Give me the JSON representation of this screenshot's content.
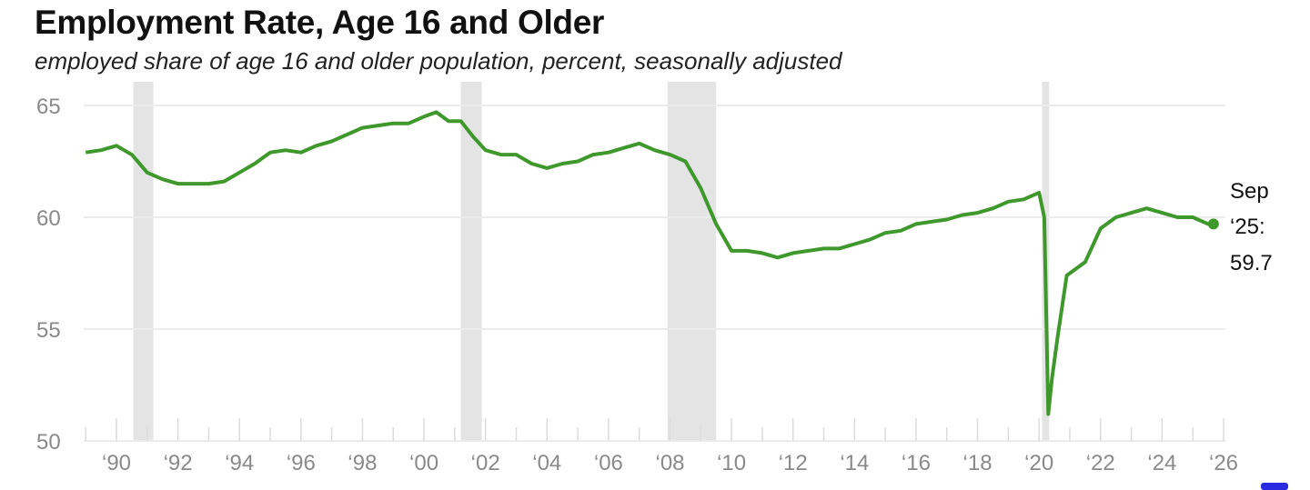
{
  "chart_data": {
    "type": "line",
    "title": "Employment Rate, Age 16 and Older",
    "subtitle": "employed share of age 16 and older population, percent, seasonally adjusted",
    "xlabel": "",
    "ylabel": "",
    "xlim": [
      1989,
      2026
    ],
    "ylim": [
      50,
      65
    ],
    "y_ticks": [
      {
        "v": 65,
        "label": "65"
      },
      {
        "v": 60,
        "label": "60"
      },
      {
        "v": 55,
        "label": "55"
      },
      {
        "v": 50,
        "label": "50"
      }
    ],
    "x_ticks": [
      {
        "v": 1990,
        "label": "‘90"
      },
      {
        "v": 1992,
        "label": "‘92"
      },
      {
        "v": 1994,
        "label": "‘94"
      },
      {
        "v": 1996,
        "label": "‘96"
      },
      {
        "v": 1998,
        "label": "‘98"
      },
      {
        "v": 2000,
        "label": "‘00"
      },
      {
        "v": 2002,
        "label": "‘02"
      },
      {
        "v": 2004,
        "label": "‘04"
      },
      {
        "v": 2006,
        "label": "‘06"
      },
      {
        "v": 2008,
        "label": "‘08"
      },
      {
        "v": 2010,
        "label": "‘10"
      },
      {
        "v": 2012,
        "label": "‘12"
      },
      {
        "v": 2014,
        "label": "‘14"
      },
      {
        "v": 2016,
        "label": "‘16"
      },
      {
        "v": 2018,
        "label": "‘18"
      },
      {
        "v": 2020,
        "label": "‘20"
      },
      {
        "v": 2022,
        "label": "‘22"
      },
      {
        "v": 2024,
        "label": "‘24"
      },
      {
        "v": 2026,
        "label": "‘26"
      }
    ],
    "grid": true,
    "recessions": [
      [
        1990.55,
        1991.2
      ],
      [
        2001.2,
        2001.88
      ],
      [
        2007.92,
        2009.5
      ],
      [
        2020.1,
        2020.33
      ]
    ],
    "series": [
      {
        "name": "Employment rate",
        "color": "#3f982b",
        "x": [
          1989.0,
          1989.5,
          1990.0,
          1990.5,
          1991.0,
          1991.5,
          1992.0,
          1992.5,
          1993.0,
          1993.5,
          1994.0,
          1994.5,
          1995.0,
          1995.5,
          1996.0,
          1996.5,
          1997.0,
          1997.5,
          1998.0,
          1998.5,
          1999.0,
          1999.5,
          2000.0,
          2000.4,
          2000.8,
          2001.2,
          2001.6,
          2002.0,
          2002.5,
          2003.0,
          2003.5,
          2004.0,
          2004.5,
          2005.0,
          2005.5,
          2006.0,
          2006.5,
          2007.0,
          2007.5,
          2008.0,
          2008.5,
          2009.0,
          2009.5,
          2010.0,
          2010.5,
          2011.0,
          2011.5,
          2012.0,
          2012.5,
          2013.0,
          2013.5,
          2014.0,
          2014.5,
          2015.0,
          2015.5,
          2016.0,
          2016.5,
          2017.0,
          2017.5,
          2018.0,
          2018.5,
          2019.0,
          2019.5,
          2020.0,
          2020.17,
          2020.3,
          2020.42,
          2020.6,
          2020.9,
          2021.5,
          2022.0,
          2022.5,
          2023.0,
          2023.5,
          2024.0,
          2024.5,
          2025.0,
          2025.5,
          2025.67
        ],
        "y": [
          62.9,
          63.0,
          63.2,
          62.8,
          62.0,
          61.7,
          61.5,
          61.5,
          61.5,
          61.6,
          62.0,
          62.4,
          62.9,
          63.0,
          62.9,
          63.2,
          63.4,
          63.7,
          64.0,
          64.1,
          64.2,
          64.2,
          64.5,
          64.7,
          64.3,
          64.3,
          63.6,
          63.0,
          62.8,
          62.8,
          62.4,
          62.2,
          62.4,
          62.5,
          62.8,
          62.9,
          63.1,
          63.3,
          63.0,
          62.8,
          62.5,
          61.3,
          59.7,
          58.5,
          58.5,
          58.4,
          58.2,
          58.4,
          58.5,
          58.6,
          58.6,
          58.8,
          59.0,
          59.3,
          59.4,
          59.7,
          59.8,
          59.9,
          60.1,
          60.2,
          60.4,
          60.7,
          60.8,
          61.1,
          60.0,
          51.2,
          52.8,
          54.6,
          57.4,
          58.0,
          59.5,
          60.0,
          60.2,
          60.4,
          60.2,
          60.0,
          60.0,
          59.7,
          59.7
        ]
      }
    ],
    "annotation": {
      "line1": "Sep",
      "line2": "‘25:",
      "line3": "59.7"
    }
  }
}
